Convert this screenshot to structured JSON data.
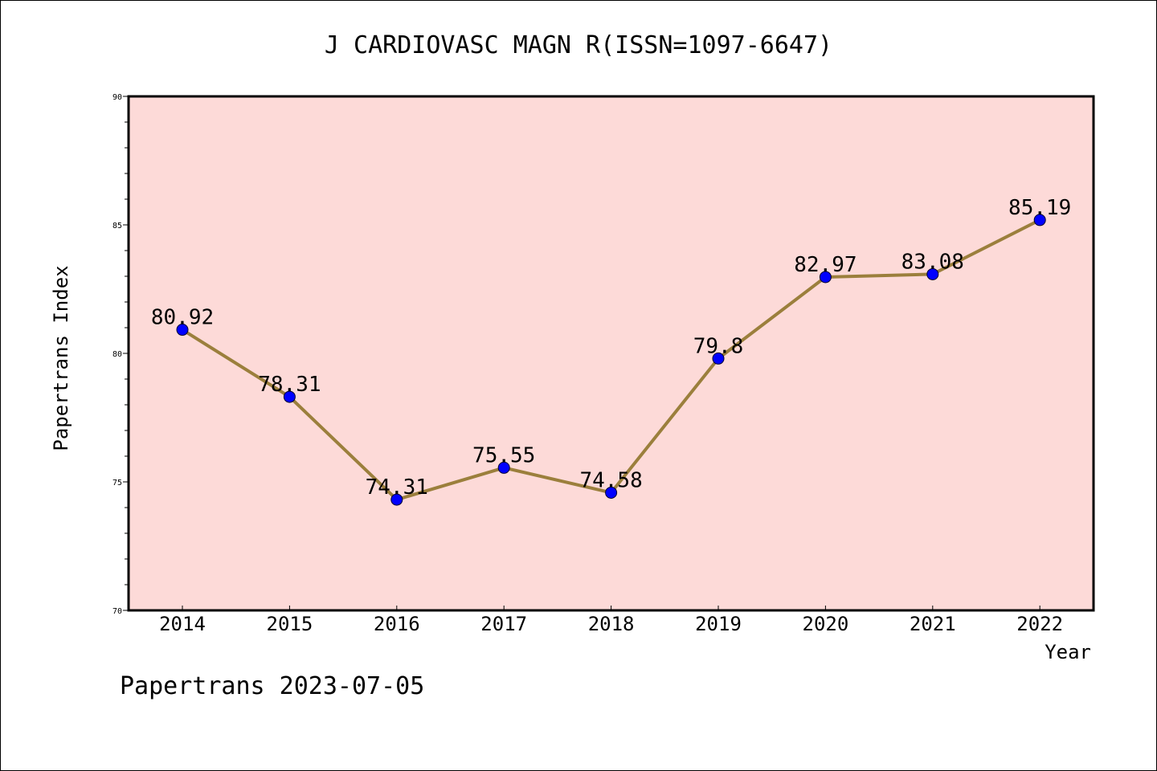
{
  "chart_data": {
    "type": "line",
    "title": "J CARDIOVASC MAGN R(ISSN=1097-6647)",
    "xlabel": "Year",
    "ylabel": "Papertrans Index",
    "categories": [
      "2014",
      "2015",
      "2016",
      "2017",
      "2018",
      "2019",
      "2020",
      "2021",
      "2022"
    ],
    "values": [
      80.92,
      78.31,
      74.31,
      75.55,
      74.58,
      79.8,
      82.97,
      83.08,
      85.19
    ],
    "data_labels": [
      "80.92",
      "78.31",
      "74.31",
      "75.55",
      "74.58",
      "79.8",
      "82.97",
      "83.08",
      "85.19"
    ],
    "ylim": [
      70,
      90
    ],
    "yticks": [
      "70",
      "75",
      "80",
      "85",
      "90"
    ],
    "grid": false,
    "colors": {
      "plot_background": "#FDDAD8",
      "line": "#9B7F3C",
      "marker": "#0000FF"
    }
  },
  "footer": "Papertrans 2023-07-05"
}
